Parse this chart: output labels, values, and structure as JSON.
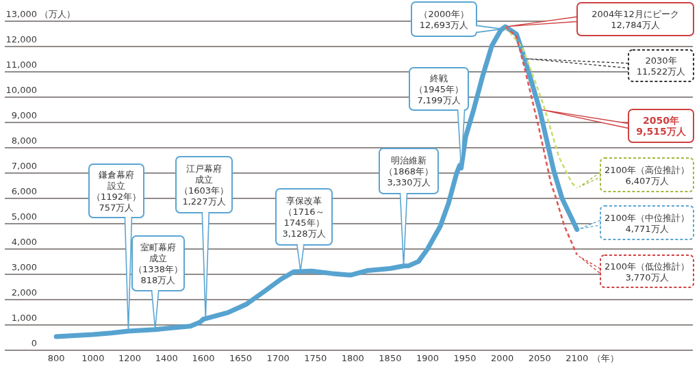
{
  "chart_data": [
    {
      "type": "line",
      "ylabel": "（万人）",
      "xlim": [
        520,
        1600
      ],
      "xticks": [
        800,
        1000,
        1200,
        1400
      ],
      "ylim": [
        0,
        13000
      ],
      "yticks": [
        0,
        {
          "value": 1000,
          "label": "1,000"
        },
        {
          "value": 2000,
          "label": "2,000"
        },
        {
          "value": 3000,
          "label": "3,000"
        },
        {
          "value": 4000,
          "label": "4,000"
        },
        {
          "value": 5000,
          "label": "5,000"
        },
        {
          "value": 6000,
          "label": "6,000"
        },
        {
          "value": 7000,
          "label": "7,000"
        },
        {
          "value": 8000,
          "label": "8,000"
        },
        {
          "value": 9000,
          "label": "9,000"
        },
        {
          "value": 10000,
          "label": "10,000"
        },
        {
          "value": 11000,
          "label": "11,000"
        },
        {
          "value": 12000,
          "label": "12,000"
        },
        {
          "value": 13000,
          "label": "13,000"
        }
      ],
      "grid": "y",
      "series": [
        {
          "color": "#57a3d0",
          "line_style": "solid",
          "x": [
            800,
            1000,
            1100,
            1192,
            1338,
            1450,
            1530,
            1580,
            1600
          ],
          "values": [
            540,
            620,
            680,
            757,
            818,
            900,
            950,
            1100,
            1227
          ]
        }
      ],
      "annotations": [
        {
          "text": "鎌倉幕府設立（1192年）757万人",
          "x": 1192,
          "y": 757
        },
        {
          "text": "室町幕府成立（1338年）818万人",
          "x": 1338,
          "y": 818
        }
      ]
    },
    {
      "type": "line",
      "xlabel": "（年）",
      "xlim": [
        1600,
        2255
      ],
      "xticks": [
        1600,
        1650,
        1700,
        1750,
        1800,
        1850,
        1900,
        1950,
        2000,
        2050,
        2100
      ],
      "ylim": [
        0,
        13000
      ],
      "yticks": [
        0,
        1000,
        2000,
        3000,
        4000,
        5000,
        6000,
        7000,
        8000,
        9000,
        10000,
        11000,
        12000,
        13000
      ],
      "grid": "y",
      "tick_labels": "x",
      "series": [
        {
          "color": "#57a3d0",
          "line_style": "solid",
          "x": [
            1600,
            1633,
            1657,
            1679,
            1704,
            1721,
            1745,
            1773,
            1797,
            1820,
            1850,
            1868,
            1875,
            1888,
            1900,
            1917,
            1928,
            1939,
            1943,
            1945,
            1951,
            1961,
            1974,
            1986,
            1998,
            2000,
            2004,
            2019,
            2030,
            2050,
            2069,
            2080,
            2100
          ],
          "values": [
            1227,
            1490,
            1810,
            2270,
            2810,
            3100,
            3128,
            3030,
            2970,
            3150,
            3230,
            3330,
            3340,
            3510,
            4000,
            4900,
            5800,
            7000,
            7300,
            7199,
            8430,
            9430,
            10860,
            12030,
            12650,
            12693,
            12784,
            12490,
            11522,
            9515,
            7080,
            6000,
            4771
          ]
        },
        {
          "color": "#c9dc6e",
          "line_style": "dashed",
          "x": [
            2004,
            2027,
            2041,
            2055,
            2076,
            2093,
            2100
          ],
          "values": [
            12784,
            11950,
            10860,
            9700,
            7620,
            6620,
            6407
          ]
        },
        {
          "color": "#e05555",
          "line_style": "dashed",
          "x": [
            2004,
            2019,
            2030,
            2049,
            2065,
            2072,
            2083,
            2100
          ],
          "values": [
            12784,
            12400,
            11130,
            8780,
            6620,
            6000,
            4920,
            3770
          ]
        }
      ],
      "annotations": [
        {
          "text": "江戸幕府成立（1603年）1,227万人",
          "x": 1603,
          "y": 1227
        },
        {
          "text": "享保改革（1716～1745年）3,128万人",
          "x": 1730,
          "y": 3128
        },
        {
          "text": "明治維新（1868年）3,330万人",
          "x": 1868,
          "y": 3330
        },
        {
          "text": "終戦（1945年）7,199万人",
          "x": 1945,
          "y": 7199
        },
        {
          "text": "（2000年）12,693万人",
          "x": 2000,
          "y": 12693
        },
        "2004年12月にピーク12,784万人",
        {
          "text": "2030年11,522万人",
          "x": 2030,
          "y": 11522
        },
        {
          "text": "**2050年9,515万人**",
          "x": 2050,
          "y": 9515
        },
        "2100年（高位推計）6,407万人",
        {
          "text": "2100年（中位推計）4,771万人",
          "x": 2100,
          "y": 4771
        },
        "2100年（低位推計）3,770万人"
      ]
    }
  ]
}
